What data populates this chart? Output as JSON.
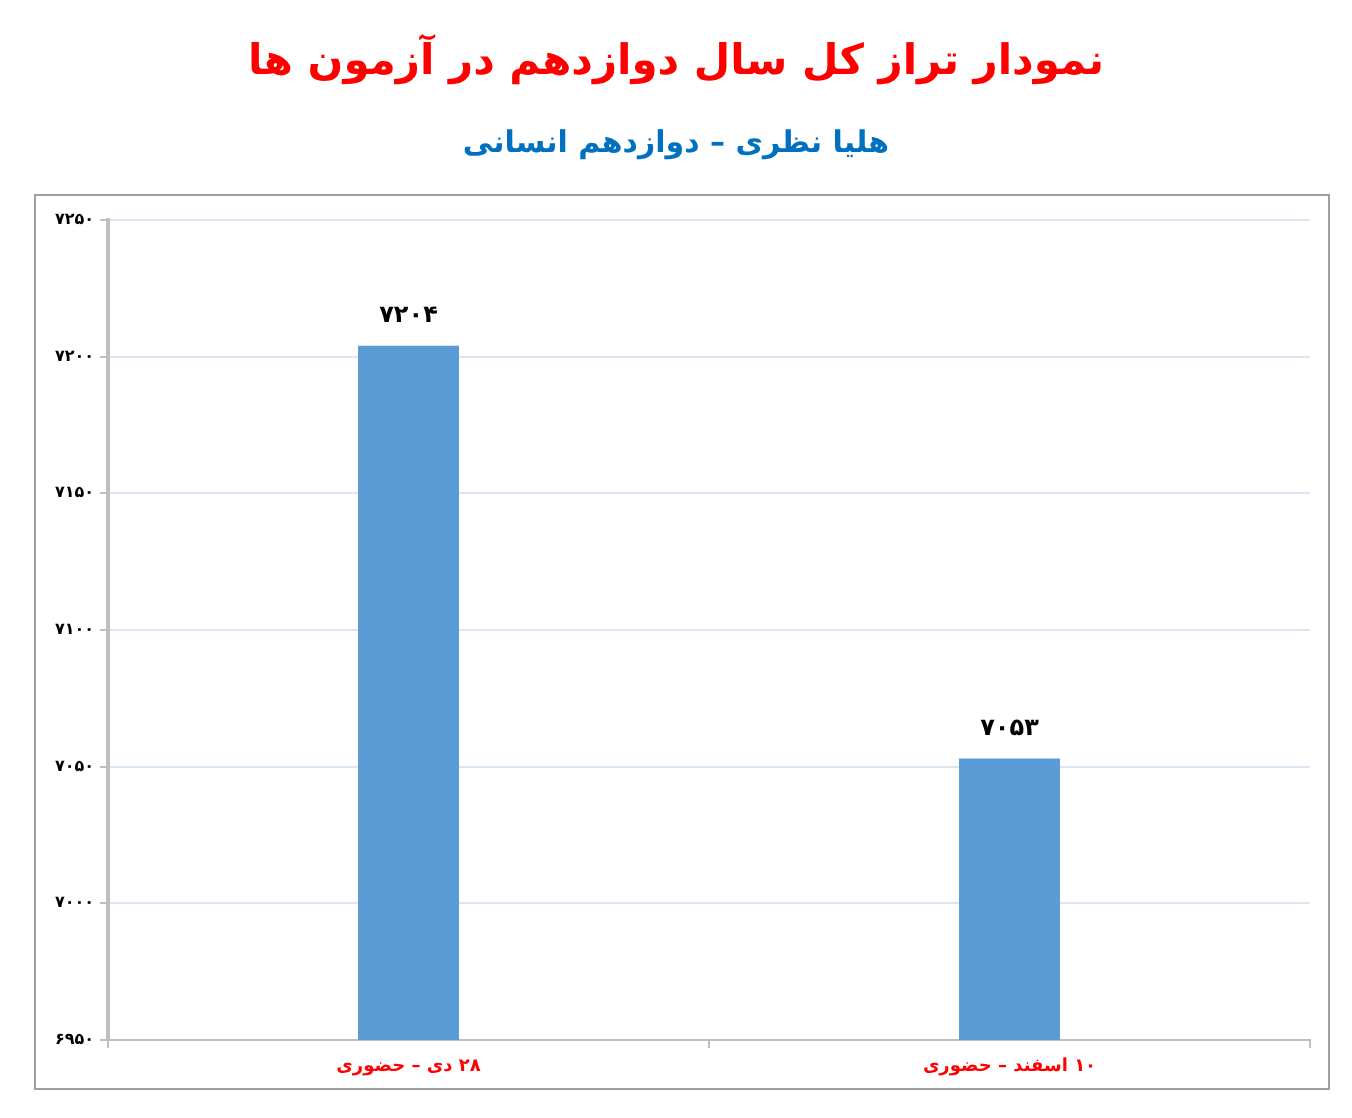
{
  "chart_data": {
    "type": "bar",
    "title": "نمودار تراز کل سال دوازدهم در آزمون ها",
    "subtitle": "هلیا نظری – دوازدهم انسانی",
    "categories": [
      "۲۸ دی – حضوری",
      "۱۰ اسفند – حضوری"
    ],
    "values": [
      7204,
      7053
    ],
    "value_labels": [
      "۷۲۰۴",
      "۷۰۵۳"
    ],
    "color": "#5b9bd5",
    "ylim": [
      6950,
      7250
    ],
    "yticks": [
      {
        "value": 6950,
        "label": "۶۹۵۰"
      },
      {
        "value": 7000,
        "label": "۷۰۰۰"
      },
      {
        "value": 7050,
        "label": "۷۰۵۰"
      },
      {
        "value": 7100,
        "label": "۷۱۰۰"
      },
      {
        "value": 7150,
        "label": "۷۱۵۰"
      },
      {
        "value": 7200,
        "label": "۷۲۰۰"
      },
      {
        "value": 7250,
        "label": "۷۲۵۰"
      }
    ],
    "grid": "y"
  }
}
